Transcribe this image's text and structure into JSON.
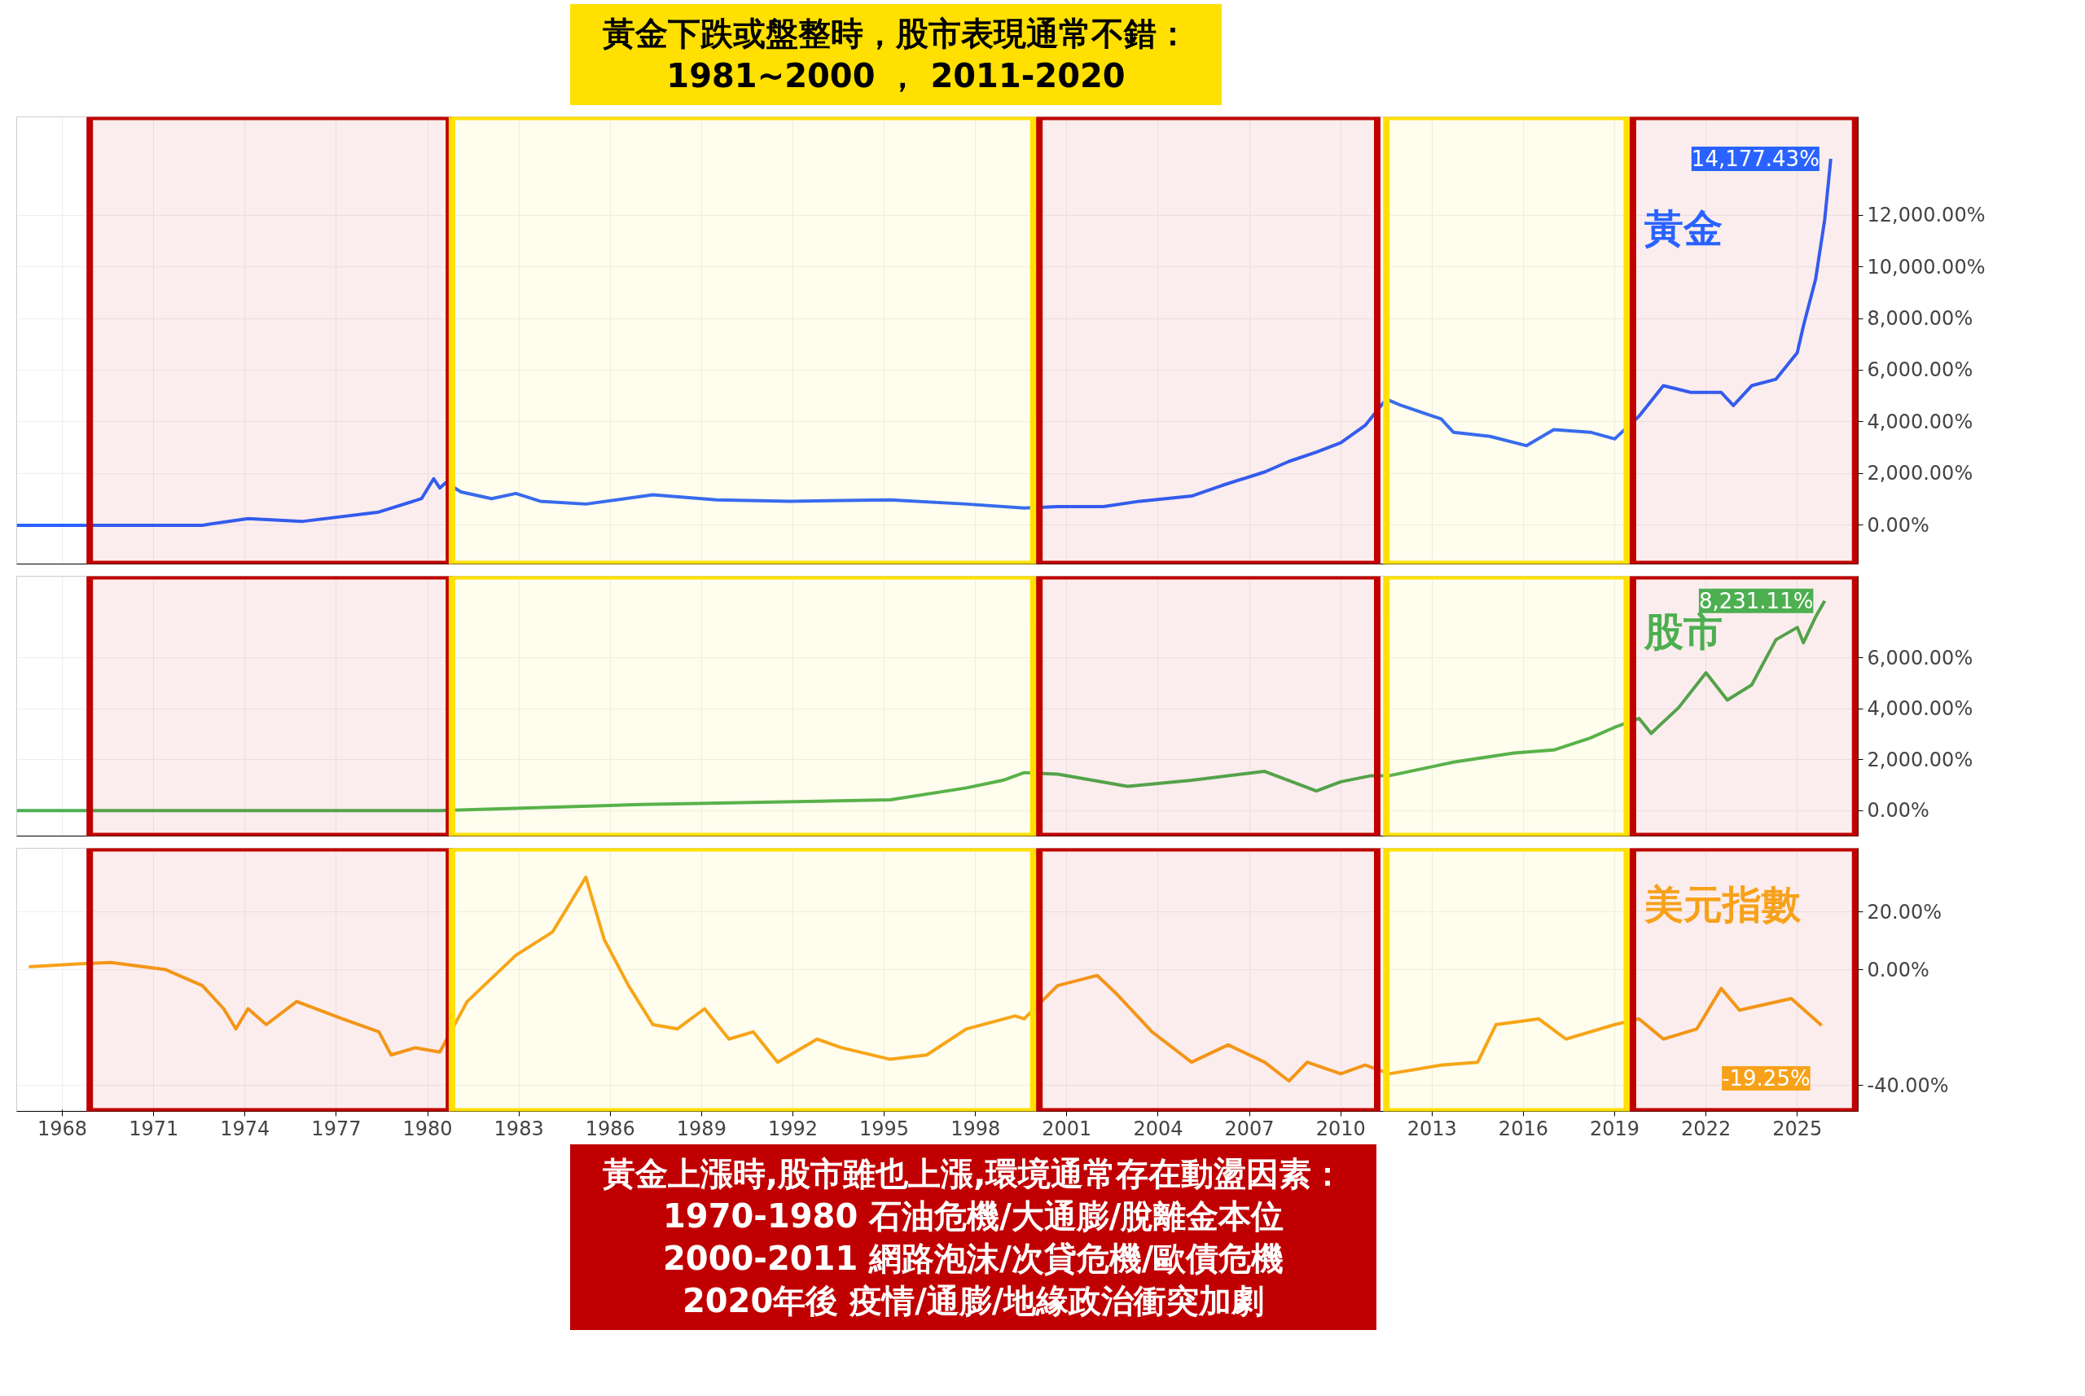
{
  "chart_data": [
    {
      "type": "line",
      "annotations": [
        "黃金下跌或盤整時，股市表現通常不錯：\n1981~2000 ， 2011-2020",
        {
          "text": "14,177.43%",
          "x": 2026.1,
          "y": 14177
        }
      ],
      "series": [
        {
          "name": "黃金",
          "color": "#2962ff",
          "x": [
            1966.5,
            1972.6,
            1974.1,
            1975.9,
            1978.4,
            1979.8,
            1980.2,
            1980.4,
            1980.6,
            1981.1,
            1982.1,
            1982.9,
            1983.7,
            1985.2,
            1987.4,
            1989.5,
            1991.9,
            1995.2,
            1997.7,
            1999.6,
            2000.7,
            2002.2,
            2003.4,
            2005.1,
            2006.1,
            2007.5,
            2008.3,
            2009.2,
            2010.0,
            2010.8,
            2011.5,
            2012.0,
            2013.3,
            2013.7,
            2014.9,
            2016.1,
            2017.0,
            2018.2,
            2019.0,
            2019.8,
            2020.6,
            2021.5,
            2022.5,
            2022.9,
            2023.5,
            2024.3,
            2025.0,
            2025.2,
            2025.6,
            2025.9,
            2026.1
          ],
          "values": [
            0,
            0,
            260,
            150,
            510,
            1030,
            1800,
            1440,
            1650,
            1290,
            1030,
            1230,
            930,
            820,
            1180,
            980,
            930,
            980,
            820,
            670,
            720,
            720,
            930,
            1130,
            1540,
            2060,
            2470,
            2830,
            3190,
            3860,
            4880,
            4630,
            4110,
            3600,
            3440,
            3080,
            3700,
            3600,
            3340,
            4220,
            5400,
            5140,
            5140,
            4630,
            5400,
            5650,
            6680,
            7710,
            9510,
            11820,
            14177
          ]
        }
      ],
      "xlim": [
        1966.5,
        2027
      ],
      "xticks": [
        1968,
        1971,
        1974,
        1977,
        1980,
        1983,
        1986,
        1989,
        1992,
        1995,
        1998,
        2001,
        2004,
        2007,
        2010,
        2013,
        2016,
        2019,
        2022,
        2025
      ],
      "ylim": [
        -1500,
        15800
      ],
      "yticks": [
        {
          "value": 0,
          "label": "0.00%"
        },
        {
          "value": 2000,
          "label": "2,000.00%"
        },
        {
          "value": 4000,
          "label": "4,000.00%"
        },
        {
          "value": 6000,
          "label": "6,000.00%"
        },
        {
          "value": 8000,
          "label": "8,000.00%"
        },
        {
          "value": 10000,
          "label": "10,000.00%"
        },
        {
          "value": 12000,
          "label": "12,000.00%"
        }
      ],
      "bands": [
        {
          "axis": "x",
          "from": 1968.9,
          "to": 1980.7,
          "color": "#c00000"
        },
        {
          "axis": "x",
          "from": 1980.8,
          "to": 1999.9,
          "color": "#ffe000"
        },
        {
          "axis": "x",
          "from": 2000.1,
          "to": 2011.2,
          "color": "#c00000"
        },
        {
          "axis": "x",
          "from": 2011.5,
          "to": 2019.4,
          "color": "#ffe000"
        },
        {
          "axis": "x",
          "from": 2019.6,
          "to": 2026.9,
          "color": "#c00000"
        }
      ],
      "grid": true,
      "tick_labels": "y"
    },
    {
      "type": "line",
      "annotations": [
        {
          "text": "8,231.11%",
          "x": 2025.9,
          "y": 8231
        }
      ],
      "series": [
        {
          "name": "股市",
          "color": "#4caf50",
          "x": [
            1966.5,
            1980.4,
            1987.0,
            1995.2,
            1997.7,
            1998.9,
            1999.6,
            2000.7,
            2003.0,
            2005.1,
            2007.5,
            2009.2,
            2010.0,
            2011.0,
            2011.6,
            2013.7,
            2015.7,
            2017.0,
            2018.2,
            2019.0,
            2019.8,
            2020.2,
            2021.1,
            2022.0,
            2022.7,
            2023.5,
            2024.3,
            2025.0,
            2025.2,
            2025.6,
            2025.9
          ],
          "values": [
            0,
            0,
            240,
            420,
            890,
            1190,
            1490,
            1430,
            950,
            1190,
            1540,
            770,
            1130,
            1370,
            1370,
            1900,
            2260,
            2380,
            2850,
            3270,
            3620,
            3030,
            4040,
            5410,
            4340,
            4930,
            6710,
            7190,
            6590,
            7600,
            8231
          ]
        }
      ],
      "xlim": [
        1966.5,
        2027
      ],
      "xticks": [
        1968,
        1971,
        1974,
        1977,
        1980,
        1983,
        1986,
        1989,
        1992,
        1995,
        1998,
        2001,
        2004,
        2007,
        2010,
        2013,
        2016,
        2019,
        2022,
        2025
      ],
      "ylim": [
        -1000,
        9200
      ],
      "yticks": [
        {
          "value": 0,
          "label": "0.00%"
        },
        {
          "value": 2000,
          "label": "2,000.00%"
        },
        {
          "value": 4000,
          "label": "4,000.00%"
        },
        {
          "value": 6000,
          "label": "6,000.00%"
        }
      ],
      "bands": [
        {
          "axis": "x",
          "from": 1968.9,
          "to": 1980.7,
          "color": "#c00000"
        },
        {
          "axis": "x",
          "from": 1980.8,
          "to": 1999.9,
          "color": "#ffe000"
        },
        {
          "axis": "x",
          "from": 2000.1,
          "to": 2011.2,
          "color": "#c00000"
        },
        {
          "axis": "x",
          "from": 2011.5,
          "to": 2019.4,
          "color": "#ffe000"
        },
        {
          "axis": "x",
          "from": 2019.6,
          "to": 2026.9,
          "color": "#c00000"
        }
      ],
      "grid": true,
      "tick_labels": "y"
    },
    {
      "type": "line",
      "annotations": [
        {
          "text": "-19.25%",
          "x": 2025.8,
          "y": -19.25
        },
        "黃金上漲時,股市雖也上漲,環境通常存在動盪因素：\n1970-1980 石油危機/大通膨/脫離金本位\n2000-2011 網路泡沫/次貸危機/歐債危機\n2020年後 疫情/通膨/地緣政治衝突加劇"
      ],
      "series": [
        {
          "name": "美元指數",
          "color": "#f7a11a",
          "x": [
            1966.9,
            1968.5,
            1969.6,
            1971.4,
            1972.6,
            1973.3,
            1973.7,
            1974.1,
            1974.7,
            1975.7,
            1977.2,
            1978.4,
            1978.8,
            1979.6,
            1980.4,
            1981.3,
            1982.9,
            1984.1,
            1985.2,
            1985.8,
            1986.6,
            1987.4,
            1988.2,
            1989.1,
            1989.9,
            1990.7,
            1991.5,
            1992.8,
            1993.6,
            1995.2,
            1996.4,
            1997.7,
            1999.3,
            1999.6,
            2000.7,
            2002.0,
            2002.6,
            2003.8,
            2005.1,
            2006.3,
            2007.5,
            2008.3,
            2008.9,
            2010.0,
            2010.8,
            2011.6,
            2013.3,
            2014.5,
            2015.1,
            2016.5,
            2017.4,
            2019.0,
            2019.8,
            2020.6,
            2021.7,
            2022.5,
            2023.1,
            2024.8,
            2025.8
          ],
          "values": [
            1,
            2,
            2.5,
            0,
            -5.5,
            -13.5,
            -20.5,
            -13.5,
            -19,
            -11,
            -17,
            -21.5,
            -29.5,
            -27,
            -28.5,
            -11,
            5,
            13,
            32,
            10.5,
            -5.5,
            -19,
            -20.5,
            -13.5,
            -24,
            -21.5,
            -32,
            -24,
            -27,
            -31,
            -29.5,
            -20.5,
            -16,
            -17,
            -5.5,
            -2,
            -8,
            -21.5,
            -32,
            -26,
            -32,
            -38.5,
            -32,
            -36,
            -33,
            -36,
            -33,
            -32,
            -19,
            -17,
            -24,
            -19,
            -17,
            -24,
            -20.5,
            -6.5,
            -14,
            -10,
            -19.25
          ]
        }
      ],
      "xlim": [
        1966.5,
        2027
      ],
      "xticks": [
        1968,
        1971,
        1974,
        1977,
        1980,
        1983,
        1986,
        1989,
        1992,
        1995,
        1998,
        2001,
        2004,
        2007,
        2010,
        2013,
        2016,
        2019,
        2022,
        2025
      ],
      "ylim": [
        -49,
        42
      ],
      "yticks": [
        {
          "value": -40,
          "label": "-40.00%"
        },
        {
          "value": 0,
          "label": "0.00%"
        },
        {
          "value": 20,
          "label": "20.00%"
        }
      ],
      "bands": [
        {
          "axis": "x",
          "from": 1968.9,
          "to": 1980.7,
          "color": "#c00000"
        },
        {
          "axis": "x",
          "from": 1980.8,
          "to": 1999.9,
          "color": "#ffe000"
        },
        {
          "axis": "x",
          "from": 2000.1,
          "to": 2011.2,
          "color": "#c00000"
        },
        {
          "axis": "x",
          "from": 2011.5,
          "to": 2019.4,
          "color": "#ffe000"
        },
        {
          "axis": "x",
          "from": 2019.6,
          "to": 2026.9,
          "color": "#c00000"
        }
      ],
      "grid": true
    }
  ]
}
